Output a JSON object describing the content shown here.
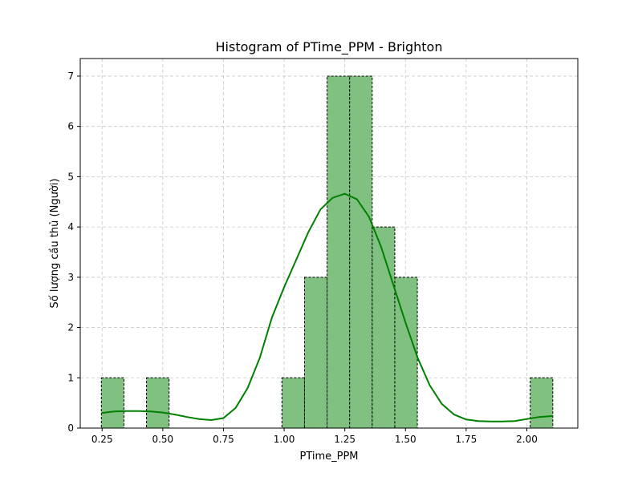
{
  "chart_data": {
    "type": "bar",
    "title": "Histogram of PTime_PPM - Brighton",
    "xlabel": "PTime_PPM",
    "ylabel": "Số lượng cầu thủ (Người)",
    "xlim": [
      0.16,
      2.21
    ],
    "ylim": [
      0,
      7.35
    ],
    "xticks": [
      0.25,
      0.5,
      0.75,
      1.0,
      1.25,
      1.5,
      1.75,
      2.0
    ],
    "xtick_labels": [
      "0.25",
      "0.50",
      "0.75",
      "1.00",
      "1.25",
      "1.50",
      "1.75",
      "2.00"
    ],
    "yticks": [
      0,
      1,
      2,
      3,
      4,
      5,
      6,
      7
    ],
    "ytick_labels": [
      "0",
      "1",
      "2",
      "3",
      "4",
      "5",
      "6",
      "7"
    ],
    "grid": true,
    "bin_edges": [
      0.247,
      0.34,
      0.433,
      0.526,
      0.619,
      0.712,
      0.805,
      0.898,
      0.991,
      1.084,
      1.177,
      1.27,
      1.363,
      1.456,
      1.549,
      1.642,
      1.735,
      1.828,
      1.921,
      2.014,
      2.107
    ],
    "counts": [
      1,
      0,
      1,
      0,
      0,
      0,
      0,
      0,
      1,
      3,
      7,
      7,
      4,
      3,
      0,
      0,
      0,
      0,
      0,
      1
    ],
    "bar_color": "#80c080",
    "kde_color": "#008000",
    "kde": {
      "x": [
        0.247,
        0.3,
        0.35,
        0.4,
        0.45,
        0.5,
        0.55,
        0.6,
        0.65,
        0.7,
        0.75,
        0.8,
        0.85,
        0.9,
        0.95,
        1.0,
        1.05,
        1.1,
        1.15,
        1.2,
        1.25,
        1.3,
        1.35,
        1.4,
        1.45,
        1.5,
        1.55,
        1.6,
        1.65,
        1.7,
        1.75,
        1.8,
        1.85,
        1.9,
        1.95,
        2.0,
        2.05,
        2.107
      ],
      "y": [
        0.3,
        0.33,
        0.34,
        0.34,
        0.33,
        0.31,
        0.27,
        0.22,
        0.18,
        0.16,
        0.2,
        0.4,
        0.8,
        1.4,
        2.2,
        2.8,
        3.35,
        3.9,
        4.35,
        4.58,
        4.66,
        4.55,
        4.2,
        3.6,
        2.85,
        2.1,
        1.4,
        0.85,
        0.48,
        0.27,
        0.17,
        0.14,
        0.13,
        0.13,
        0.14,
        0.18,
        0.22,
        0.24
      ]
    }
  }
}
